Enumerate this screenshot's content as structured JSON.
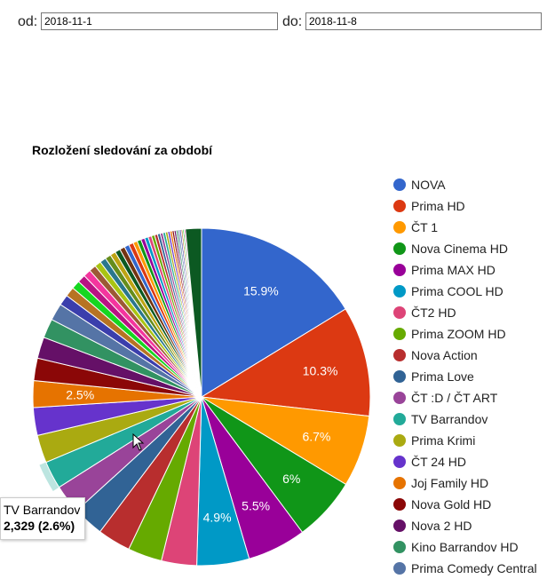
{
  "filters": {
    "from_label": "od:",
    "from_value": "2018-11-1",
    "to_label": "do:",
    "to_value": "2018-11-8"
  },
  "chart_data": {
    "type": "pie",
    "title": "Rozložení sledování za období",
    "legend_position": "right",
    "slices": [
      {
        "name": "NOVA",
        "value": 15.9,
        "color": "#3366cc",
        "label": "15.9%"
      },
      {
        "name": "Prima HD",
        "value": 10.3,
        "color": "#dc3912",
        "label": "10.3%"
      },
      {
        "name": "ČT 1",
        "value": 6.7,
        "color": "#ff9900",
        "label": "6.7%"
      },
      {
        "name": "Nova Cinema HD",
        "value": 6.0,
        "color": "#109618",
        "label": "6%"
      },
      {
        "name": "Prima MAX HD",
        "value": 5.5,
        "color": "#990099",
        "label": "5.5%"
      },
      {
        "name": "Prima COOL HD",
        "value": 4.9,
        "color": "#0099c6",
        "label": "4.9%"
      },
      {
        "name": "ČT2 HD",
        "value": 3.3,
        "color": "#dd4477",
        "label": ""
      },
      {
        "name": "Prima ZOOM HD",
        "value": 3.2,
        "color": "#66aa00",
        "label": ""
      },
      {
        "name": "Nova Action",
        "value": 3.1,
        "color": "#b82e2e",
        "label": ""
      },
      {
        "name": "Prima Love",
        "value": 2.9,
        "color": "#316395",
        "label": ""
      },
      {
        "name": "ČT :D / ČT ART",
        "value": 2.7,
        "color": "#994499",
        "label": ""
      },
      {
        "name": "TV Barrandov",
        "value": 2.6,
        "color": "#22aa99",
        "label": ""
      },
      {
        "name": "Prima Krimi",
        "value": 2.6,
        "color": "#aaaa11",
        "label": ""
      },
      {
        "name": "ČT 24 HD",
        "value": 2.6,
        "color": "#6633cc",
        "label": ""
      },
      {
        "name": "Joj Family HD",
        "value": 2.5,
        "color": "#e67300",
        "label": "2.5%"
      },
      {
        "name": "Nova Gold HD",
        "value": 2.1,
        "color": "#8b0707",
        "label": ""
      },
      {
        "name": "Nova 2 HD",
        "value": 2.0,
        "color": "#651067",
        "label": ""
      },
      {
        "name": "Kino Barrandov HD",
        "value": 1.8,
        "color": "#329262",
        "label": ""
      },
      {
        "name": "Prima Comedy Central",
        "value": 1.6,
        "color": "#5574a6",
        "label": ""
      }
    ],
    "other_slices": [
      {
        "value": 1.0,
        "color": "#3b3eac"
      },
      {
        "value": 0.9,
        "color": "#b77322"
      },
      {
        "value": 0.8,
        "color": "#16d620"
      },
      {
        "value": 0.75,
        "color": "#b91383"
      },
      {
        "value": 0.7,
        "color": "#f4359e"
      },
      {
        "value": 0.65,
        "color": "#9c5935"
      },
      {
        "value": 0.6,
        "color": "#a9c413"
      },
      {
        "value": 0.58,
        "color": "#2a778d"
      },
      {
        "value": 0.55,
        "color": "#668d1c"
      },
      {
        "value": 0.52,
        "color": "#bea413"
      },
      {
        "value": 0.5,
        "color": "#0c5922"
      },
      {
        "value": 0.48,
        "color": "#743411"
      },
      {
        "value": 0.45,
        "color": "#3366cc"
      },
      {
        "value": 0.43,
        "color": "#dc3912"
      },
      {
        "value": 0.4,
        "color": "#ff9900"
      },
      {
        "value": 0.38,
        "color": "#109618"
      },
      {
        "value": 0.36,
        "color": "#990099"
      },
      {
        "value": 0.34,
        "color": "#0099c6"
      },
      {
        "value": 0.32,
        "color": "#dd4477"
      },
      {
        "value": 0.3,
        "color": "#66aa00"
      },
      {
        "value": 0.28,
        "color": "#b82e2e"
      },
      {
        "value": 0.26,
        "color": "#316395"
      },
      {
        "value": 0.25,
        "color": "#994499"
      },
      {
        "value": 0.24,
        "color": "#22aa99"
      },
      {
        "value": 0.22,
        "color": "#aaaa11"
      },
      {
        "value": 0.21,
        "color": "#6633cc"
      },
      {
        "value": 0.2,
        "color": "#e67300"
      },
      {
        "value": 0.19,
        "color": "#8b0707"
      },
      {
        "value": 0.18,
        "color": "#651067"
      },
      {
        "value": 0.17,
        "color": "#329262"
      },
      {
        "value": 0.16,
        "color": "#5574a6"
      },
      {
        "value": 0.15,
        "color": "#3b3eac"
      },
      {
        "value": 0.14,
        "color": "#b77322"
      },
      {
        "value": 0.13,
        "color": "#16d620"
      },
      {
        "value": 0.12,
        "color": "#b91383"
      },
      {
        "value": 1.5,
        "color": "#0c5922"
      }
    ],
    "highlighted": "TV Barrandov"
  },
  "tooltip": {
    "name": "TV Barrandov",
    "value": "2,329 (2.6%)"
  },
  "icons": {
    "cursor": "mouse-pointer-icon"
  }
}
